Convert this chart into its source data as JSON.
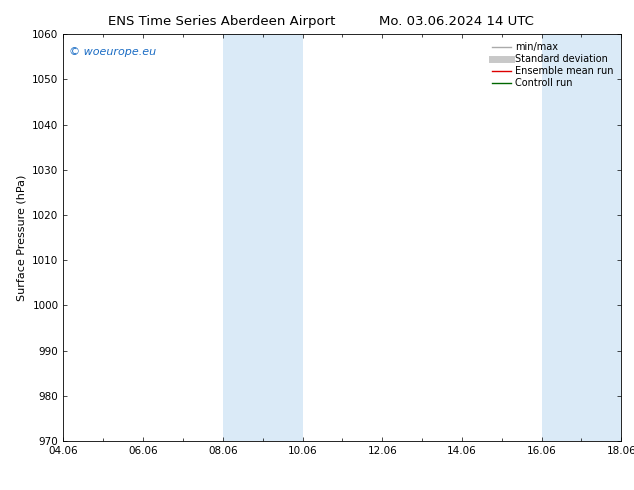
{
  "title_left": "ENS Time Series Aberdeen Airport",
  "title_right": "Mo. 03.06.2024 14 UTC",
  "ylabel": "Surface Pressure (hPa)",
  "xlim_start": 0,
  "xlim_end": 14,
  "ylim": [
    970,
    1060
  ],
  "yticks": [
    970,
    980,
    990,
    1000,
    1010,
    1020,
    1030,
    1040,
    1050,
    1060
  ],
  "xtick_labels": [
    "04.06",
    "06.06",
    "08.06",
    "10.06",
    "12.06",
    "14.06",
    "16.06",
    "18.06"
  ],
  "xtick_positions": [
    0,
    2,
    4,
    6,
    8,
    10,
    12,
    14
  ],
  "shaded_bands": [
    {
      "x_start": 4,
      "x_end": 6
    },
    {
      "x_start": 12,
      "x_end": 14
    }
  ],
  "shaded_color": "#daeaf7",
  "watermark_text": "© woeurope.eu",
  "watermark_color": "#1a6cc4",
  "legend_items": [
    {
      "label": "min/max",
      "color": "#aaaaaa",
      "lw": 1,
      "ls": "-"
    },
    {
      "label": "Standard deviation",
      "color": "#c8c8c8",
      "lw": 5,
      "ls": "-"
    },
    {
      "label": "Ensemble mean run",
      "color": "#dd0000",
      "lw": 1,
      "ls": "-"
    },
    {
      "label": "Controll run",
      "color": "#006600",
      "lw": 1,
      "ls": "-"
    }
  ],
  "bg_color": "#ffffff",
  "title_fontsize": 9.5,
  "axis_label_fontsize": 8,
  "tick_fontsize": 7.5,
  "legend_fontsize": 7,
  "watermark_fontsize": 8,
  "font_family": "DejaVu Sans"
}
